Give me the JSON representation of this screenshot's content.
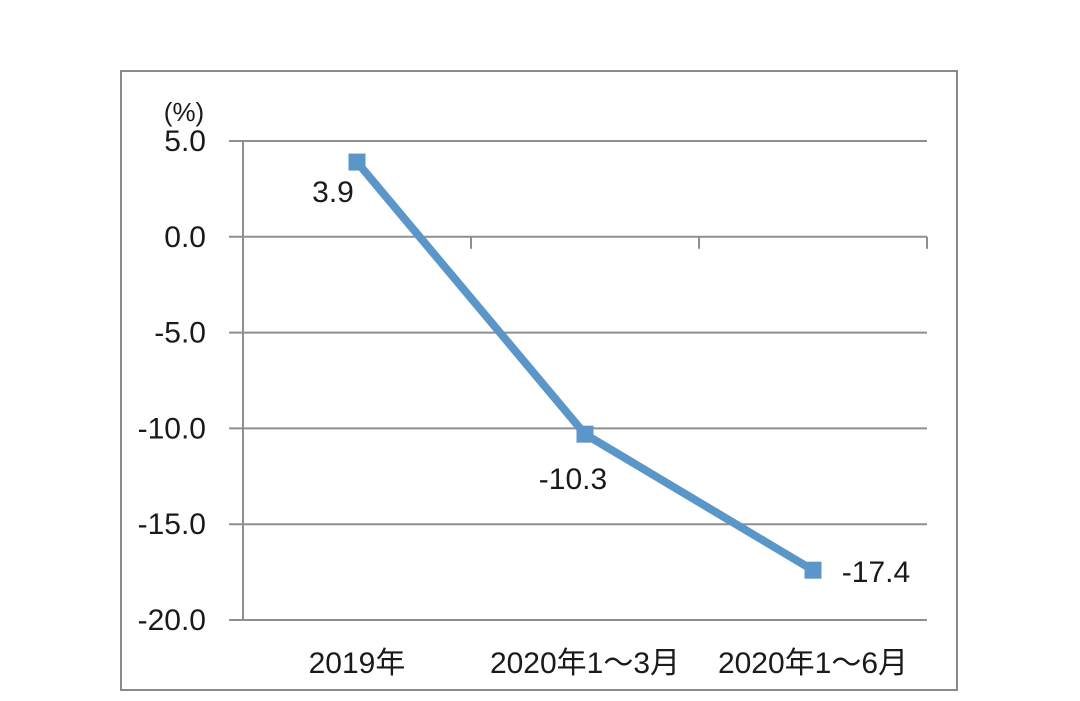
{
  "page": {
    "background": "#ffffff"
  },
  "chart_data": {
    "type": "line",
    "title": "",
    "unit_label": "(%)",
    "categories": [
      "2019年",
      "2020年1～3月",
      "2020年1～6月"
    ],
    "values": [
      3.9,
      -10.3,
      -17.4
    ],
    "data_labels": [
      "3.9",
      "-10.3",
      "-17.4"
    ],
    "y_ticks": [
      {
        "label": "5.0",
        "value": 5
      },
      {
        "label": "0.0",
        "value": 0
      },
      {
        "label": "-5.0",
        "value": -5
      },
      {
        "label": "-10.0",
        "value": -10
      },
      {
        "label": "-15.0",
        "value": -15
      },
      {
        "label": "-20.0",
        "value": -20
      }
    ],
    "ylim": [
      -20,
      5
    ],
    "grid": true,
    "legend_position": "none",
    "marker_shape": "square",
    "colors": {
      "line": "#5b96c8",
      "marker": "#5b96c8",
      "gridline": "#8f8f8f",
      "axis": "#8f8f8f",
      "frame_border": "#8a8a8a",
      "text": "#1a1a1a"
    }
  }
}
